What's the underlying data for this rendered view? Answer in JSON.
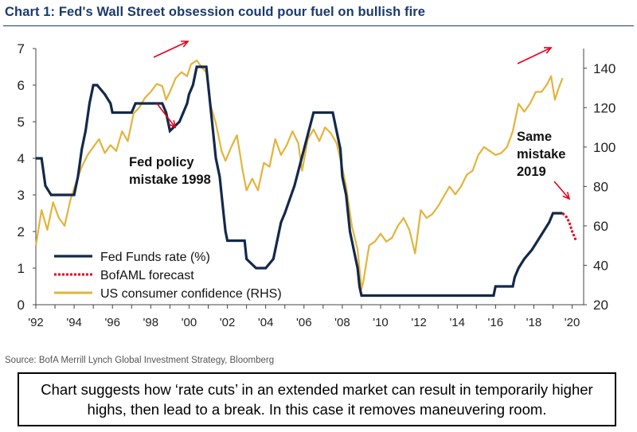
{
  "header": {
    "title": "Chart 1: Fed's Wall Street obsession could pour fuel on bullish fire"
  },
  "footer": {
    "source": "Source: BofA Merrill Lynch Global Investment Strategy, Bloomberg",
    "note": "Chart suggests how ‘rate cuts’ in an extended market can result in temporarily higher highs, then lead to a break. In this case it removes maneuvering room."
  },
  "colors": {
    "fed": "#13294b",
    "forecast": "#e8001c",
    "confidence": "#e3b43c",
    "arrow": "#e8001c"
  },
  "chart_data": {
    "type": "line",
    "xlim": [
      1992,
      2020.6
    ],
    "x_ticks": [
      "'92",
      "'94",
      "'96",
      "'98",
      "'00",
      "'02",
      "'04",
      "'06",
      "'08",
      "'10",
      "'12",
      "'14",
      "'16",
      "'18",
      "'20"
    ],
    "ylim_left": [
      0,
      7
    ],
    "y_ticks_left": [
      "0",
      "1",
      "2",
      "3",
      "4",
      "5",
      "6",
      "7"
    ],
    "ylim_right": [
      20,
      150
    ],
    "y_ticks_right": [
      "20",
      "40",
      "60",
      "80",
      "100",
      "120",
      "140"
    ],
    "legend_position": "bottom-left",
    "annotations": [
      {
        "text_lines": [
          "Fed policy",
          "mistake 1998"
        ]
      },
      {
        "text_lines": [
          "Same",
          "mistake",
          "2019"
        ]
      }
    ],
    "series": [
      {
        "name": "Fed Funds rate (%)",
        "axis": "left",
        "x": [
          1992.0,
          1992.3,
          1992.5,
          1992.8,
          1993.0,
          1994.0,
          1994.2,
          1994.4,
          1994.6,
          1994.8,
          1995.0,
          1995.2,
          1995.6,
          1995.9,
          1996.0,
          1997.0,
          1997.2,
          1998.0,
          1998.6,
          1998.8,
          1998.9,
          1999.0,
          1999.5,
          1999.7,
          1999.9,
          2000.0,
          2000.2,
          2000.4,
          2000.9,
          2001.0,
          2001.2,
          2001.4,
          2001.6,
          2001.7,
          2001.8,
          2001.9,
          2002.0,
          2002.9,
          2003.0,
          2003.5,
          2004.0,
          2004.4,
          2004.6,
          2004.8,
          2005.0,
          2005.5,
          2006.0,
          2006.5,
          2007.5,
          2007.7,
          2007.9,
          2008.0,
          2008.2,
          2008.4,
          2008.8,
          2008.9,
          2009.0,
          2015.9,
          2016.0,
          2016.9,
          2017.0,
          2017.2,
          2017.5,
          2017.9,
          2018.2,
          2018.5,
          2018.8,
          2019.0,
          2019.5
        ],
        "y": [
          4.0,
          4.0,
          3.25,
          3.0,
          3.0,
          3.0,
          3.5,
          4.25,
          4.75,
          5.5,
          6.0,
          6.0,
          5.75,
          5.5,
          5.25,
          5.25,
          5.5,
          5.5,
          5.5,
          5.25,
          5.0,
          4.75,
          5.0,
          5.25,
          5.5,
          5.75,
          6.0,
          6.5,
          6.5,
          6.0,
          5.0,
          4.0,
          3.5,
          3.0,
          2.5,
          2.0,
          1.75,
          1.75,
          1.25,
          1.0,
          1.0,
          1.25,
          1.75,
          2.25,
          2.5,
          3.25,
          4.25,
          5.25,
          5.25,
          4.75,
          4.25,
          3.5,
          3.0,
          2.0,
          1.0,
          0.5,
          0.25,
          0.25,
          0.5,
          0.5,
          0.75,
          1.0,
          1.25,
          1.5,
          1.75,
          2.0,
          2.25,
          2.5,
          2.5
        ]
      },
      {
        "name": "BofAML forecast",
        "axis": "left",
        "x": [
          2019.5,
          2019.7,
          2019.85,
          2020.0,
          2020.2
        ],
        "y": [
          2.5,
          2.4,
          2.25,
          2.0,
          1.75
        ]
      },
      {
        "name": "US consumer confidence (RHS)",
        "axis": "right",
        "x": [
          1992.0,
          1992.3,
          1992.6,
          1992.9,
          1993.2,
          1993.5,
          1993.8,
          1994.1,
          1994.4,
          1994.7,
          1995.0,
          1995.3,
          1995.6,
          1995.9,
          1996.2,
          1996.5,
          1996.8,
          1997.1,
          1997.4,
          1997.7,
          1998.0,
          1998.3,
          1998.6,
          1998.8,
          1999.0,
          1999.3,
          1999.6,
          1999.9,
          2000.1,
          2000.4,
          2000.7,
          2000.9,
          2001.1,
          2001.4,
          2001.7,
          2001.9,
          2002.2,
          2002.5,
          2002.8,
          2003.0,
          2003.3,
          2003.6,
          2003.9,
          2004.2,
          2004.5,
          2004.8,
          2005.1,
          2005.4,
          2005.7,
          2005.9,
          2006.2,
          2006.5,
          2006.8,
          2007.1,
          2007.4,
          2007.7,
          2007.9,
          2008.2,
          2008.5,
          2008.8,
          2009.0,
          2009.1,
          2009.4,
          2009.7,
          2010.0,
          2010.3,
          2010.6,
          2010.9,
          2011.2,
          2011.5,
          2011.8,
          2012.1,
          2012.4,
          2012.7,
          2013.0,
          2013.3,
          2013.6,
          2013.9,
          2014.2,
          2014.5,
          2014.8,
          2015.1,
          2015.4,
          2015.7,
          2016.0,
          2016.3,
          2016.6,
          2016.9,
          2017.2,
          2017.5,
          2017.8,
          2018.1,
          2018.4,
          2018.7,
          2018.9,
          2019.1,
          2019.3,
          2019.5
        ],
        "y": [
          50,
          68,
          58,
          72,
          64,
          60,
          73,
          82,
          90,
          96,
          100,
          104,
          97,
          101,
          98,
          108,
          103,
          117,
          120,
          125,
          128,
          132,
          131,
          124,
          128,
          135,
          138,
          136,
          142,
          144,
          140,
          138,
          122,
          112,
          98,
          93,
          100,
          106,
          88,
          78,
          84,
          78,
          92,
          90,
          104,
          96,
          101,
          108,
          102,
          88,
          104,
          109,
          103,
          110,
          107,
          102,
          94,
          80,
          60,
          48,
          28,
          32,
          50,
          52,
          56,
          52,
          54,
          60,
          64,
          58,
          46,
          68,
          64,
          66,
          70,
          75,
          80,
          76,
          80,
          86,
          88,
          96,
          100,
          98,
          96,
          97,
          100,
          108,
          122,
          118,
          122,
          128,
          128,
          132,
          136,
          124,
          130,
          135
        ]
      }
    ]
  }
}
